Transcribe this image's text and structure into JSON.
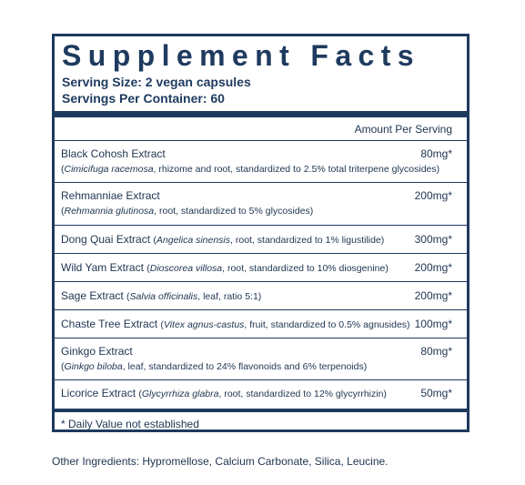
{
  "title": "Supplement Facts",
  "serving_size": "Serving Size: 2 vegan capsules",
  "servings_per_container": "Servings Per Container: 60",
  "amount_header": "Amount Per Serving",
  "ingredients": [
    {
      "name": "Black Cohosh Extract",
      "amount": "80mg*",
      "sub_italic": "Cimicifuga racemosa",
      "sub_rest": ", rhizome and root, standardized to 2.5% total triterpene glycosides)"
    },
    {
      "name": "Rehmanniae Extract",
      "amount": "200mg*",
      "sub_italic": "Rehmannia glutinosa",
      "sub_rest": ", root, standardized to 5% glycosides)"
    },
    {
      "name": "Dong Quai Extract",
      "amount": "300mg*",
      "sub_italic": "Angelica sinensis",
      "sub_rest": ", root, standardized to 1% ligustilide)"
    },
    {
      "name": "Wild Yam Extract",
      "amount": "200mg*",
      "sub_italic": "Dioscorea villosa",
      "sub_rest": ", root, standardized to 10% diosgenine)"
    },
    {
      "name": "Sage Extract",
      "amount": "200mg*",
      "sub_italic": "Salvia officinalis",
      "sub_rest": ", leaf, ratio 5:1)"
    },
    {
      "name": "Chaste Tree Extract",
      "amount": "100mg*",
      "sub_italic": "Vitex agnus-castus",
      "sub_rest": ", fruit, standardized to 0.5% agnusides)"
    },
    {
      "name": "Ginkgo Extract",
      "amount": "80mg*",
      "sub_italic": "Ginkgo biloba",
      "sub_rest": ", leaf, standardized to 24% flavonoids and 6% terpenoids)"
    },
    {
      "name": "Licorice Extract",
      "amount": "50mg*",
      "sub_italic": "Glycyrrhiza glabra",
      "sub_rest": ", root, standardized to 12% glycyrrhizin)"
    }
  ],
  "footnote": "* Daily Value not established",
  "other_ingredients": "Other Ingredients: Hypromellose,  Calcium Carbonate, Silica, Leucine."
}
